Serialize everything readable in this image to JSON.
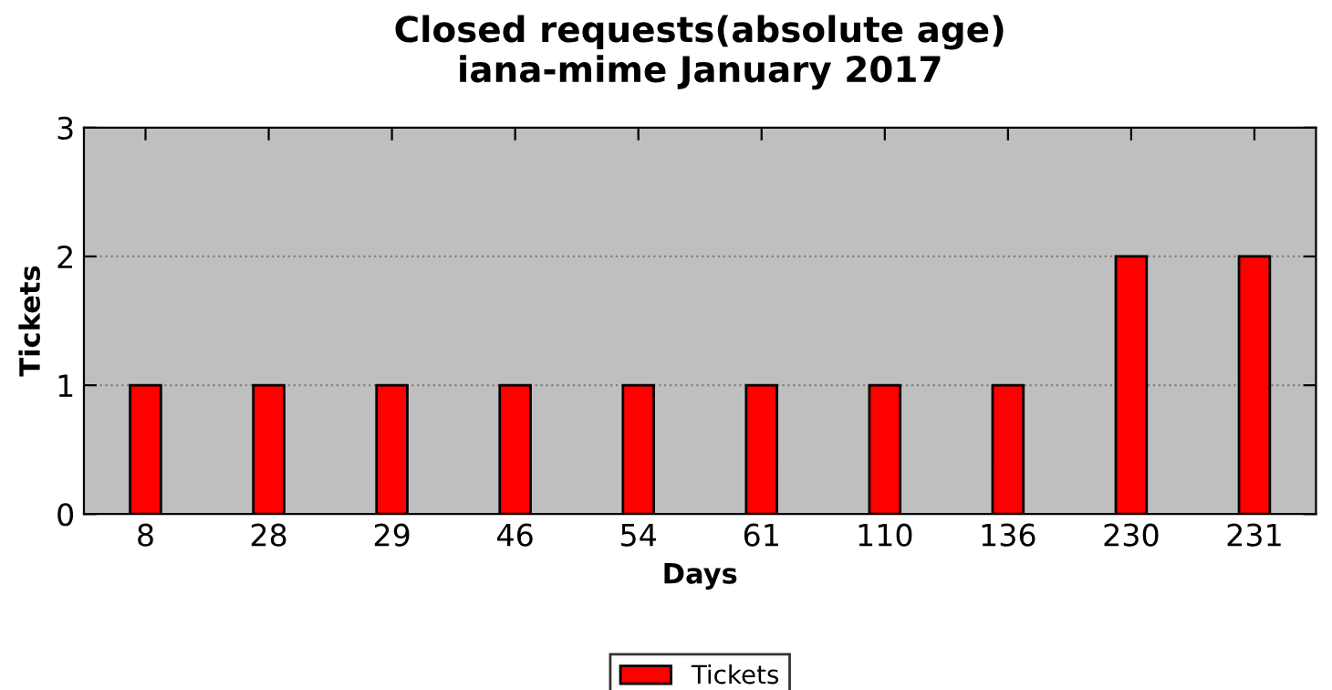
{
  "chart_data": {
    "type": "bar",
    "title": "Closed requests(absolute age)\niana-mime January 2017",
    "xlabel": "Days",
    "ylabel": "Tickets",
    "categories": [
      "8",
      "28",
      "29",
      "46",
      "54",
      "61",
      "110",
      "136",
      "230",
      "231"
    ],
    "series": [
      {
        "name": "Tickets",
        "color": "#ff0000",
        "values": [
          1,
          1,
          1,
          1,
          1,
          1,
          1,
          1,
          2,
          2
        ]
      }
    ],
    "ylim": [
      0,
      3
    ],
    "yticks": [
      0,
      1,
      2,
      3
    ],
    "grid": "y",
    "legend": "bottom"
  }
}
